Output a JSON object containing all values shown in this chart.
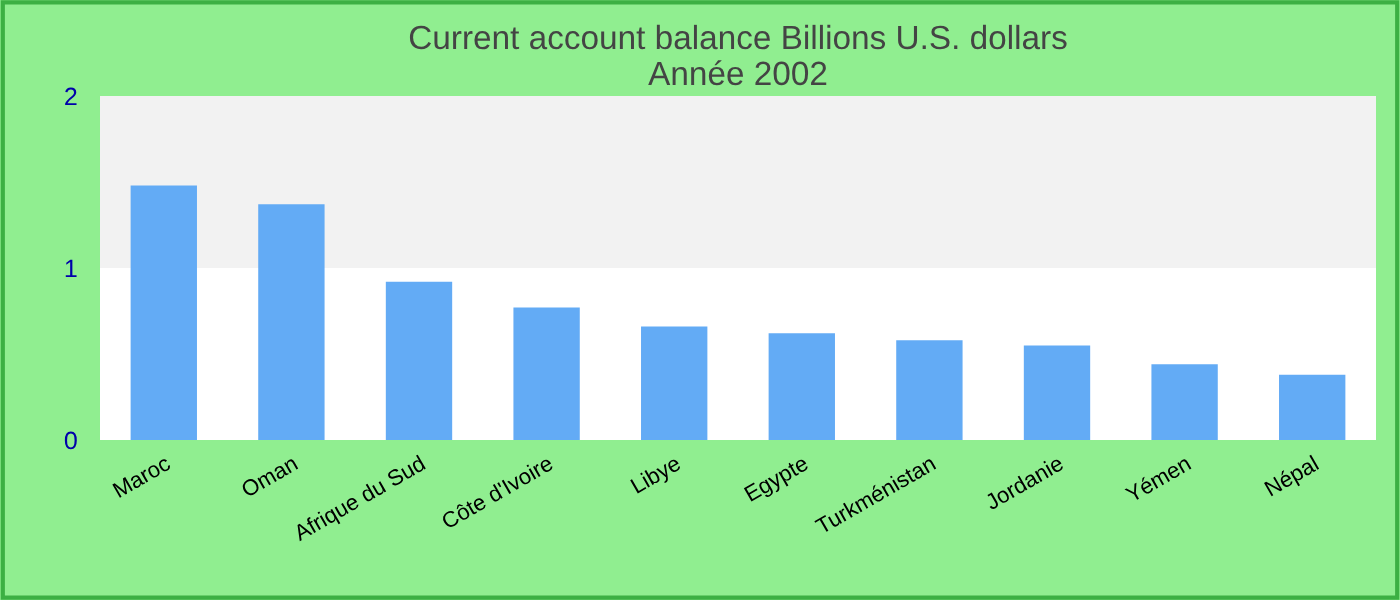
{
  "chart_data": {
    "type": "bar",
    "title": "Current account balance Billions U.S. dollars\nAnnée 2002",
    "categories": [
      "Maroc",
      "Oman",
      "Afrique du Sud",
      "Côte d'Ivoire",
      "Libye",
      "Egypte",
      "Turkménistan",
      "Jordanie",
      "Yémen",
      "Népal"
    ],
    "values": [
      1.48,
      1.37,
      0.92,
      0.77,
      0.66,
      0.62,
      0.58,
      0.55,
      0.44,
      0.38
    ],
    "color": "#63abf5",
    "ylim": [
      0,
      2
    ],
    "yticks": [
      0,
      1,
      2
    ],
    "bands": [
      {
        "axis": "y",
        "from": 1,
        "to": 2,
        "color": "#f2f2f2"
      }
    ],
    "grid": false,
    "legend": false
  }
}
